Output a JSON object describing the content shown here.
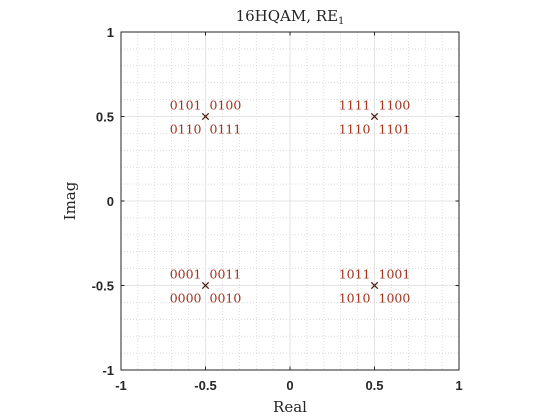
{
  "chart_data": {
    "type": "scatter",
    "title": "16HQAM, RE",
    "title_subscript": "1",
    "xlabel": "Real",
    "ylabel": "Imag",
    "xlim": [
      -1,
      1
    ],
    "ylim": [
      -1,
      1
    ],
    "xticks": [
      {
        "value": -1,
        "label": "-1"
      },
      {
        "value": -0.5,
        "label": "-0.5"
      },
      {
        "value": 0,
        "label": "0"
      },
      {
        "value": 0.5,
        "label": "0.5"
      },
      {
        "value": 1,
        "label": "1"
      }
    ],
    "yticks": [
      {
        "value": -1,
        "label": "-1"
      },
      {
        "value": -0.5,
        "label": "-0.5"
      },
      {
        "value": 0,
        "label": "0"
      },
      {
        "value": 0.5,
        "label": "0.5"
      },
      {
        "value": 1,
        "label": "1"
      }
    ],
    "grid": true,
    "minor_grid": true,
    "marker": "x",
    "color": "#a0321e",
    "points": [
      {
        "x": -0.5,
        "y": 0.5,
        "labels": [
          "0101",
          "0100",
          "0110",
          "0111"
        ]
      },
      {
        "x": 0.5,
        "y": 0.5,
        "labels": [
          "1111",
          "1100",
          "1110",
          "1101"
        ]
      },
      {
        "x": -0.5,
        "y": -0.5,
        "labels": [
          "0001",
          "0011",
          "0000",
          "0010"
        ]
      },
      {
        "x": 0.5,
        "y": -0.5,
        "labels": [
          "1011",
          "1001",
          "1010",
          "1000"
        ]
      }
    ]
  }
}
